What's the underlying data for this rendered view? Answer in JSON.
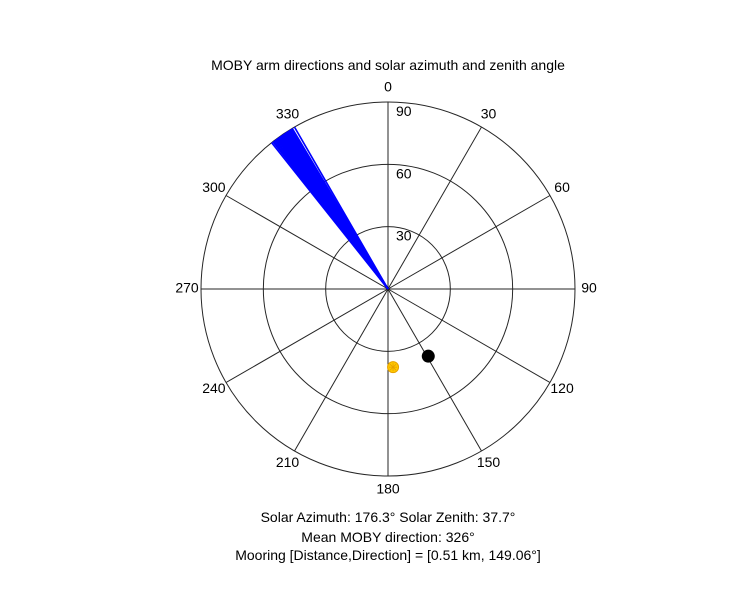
{
  "title": "MOBY arm directions and solar azimuth and zenith angle",
  "caption": {
    "line1": "Solar Azimuth: 176.3°   Solar Zenith: 37.7°",
    "line2": "Mean MOBY direction: 326°",
    "line3": "Mooring [Distance,Direction] = [0.51 km, 149.06°]"
  },
  "chart_data": {
    "type": "polar",
    "angle_ticks": [
      0,
      30,
      60,
      90,
      120,
      150,
      180,
      210,
      240,
      270,
      300,
      330
    ],
    "radial_ticks": [
      30,
      60,
      90
    ],
    "rlim": [
      90,
      0
    ],
    "theta_zero": "top",
    "theta_direction": "clockwise",
    "grid": true,
    "colors": {
      "arms": "#0000ff",
      "sun": "#ffc800",
      "sun_edge": "#e6a100",
      "mooring": "#000000",
      "grid": "#262626"
    },
    "series": [
      {
        "marker": "line",
        "color": "#0000ff",
        "directions_deg": [
          321.5,
          322.0,
          322.4,
          322.8,
          323.1,
          323.5,
          323.8,
          324.1,
          324.4,
          324.7,
          325.0,
          325.3,
          325.6,
          325.9,
          326.2,
          326.5,
          326.8,
          327.1,
          327.4,
          327.7,
          328.0,
          328.3,
          328.6,
          328.9,
          329.2,
          330.0
        ],
        "r": 0
      },
      {
        "marker": "sun",
        "color": "#ffc800",
        "theta": 176.3,
        "r": 37.7
      },
      {
        "marker": "dot",
        "color": "#000000",
        "theta": 149.06,
        "r": 37.7
      }
    ]
  }
}
